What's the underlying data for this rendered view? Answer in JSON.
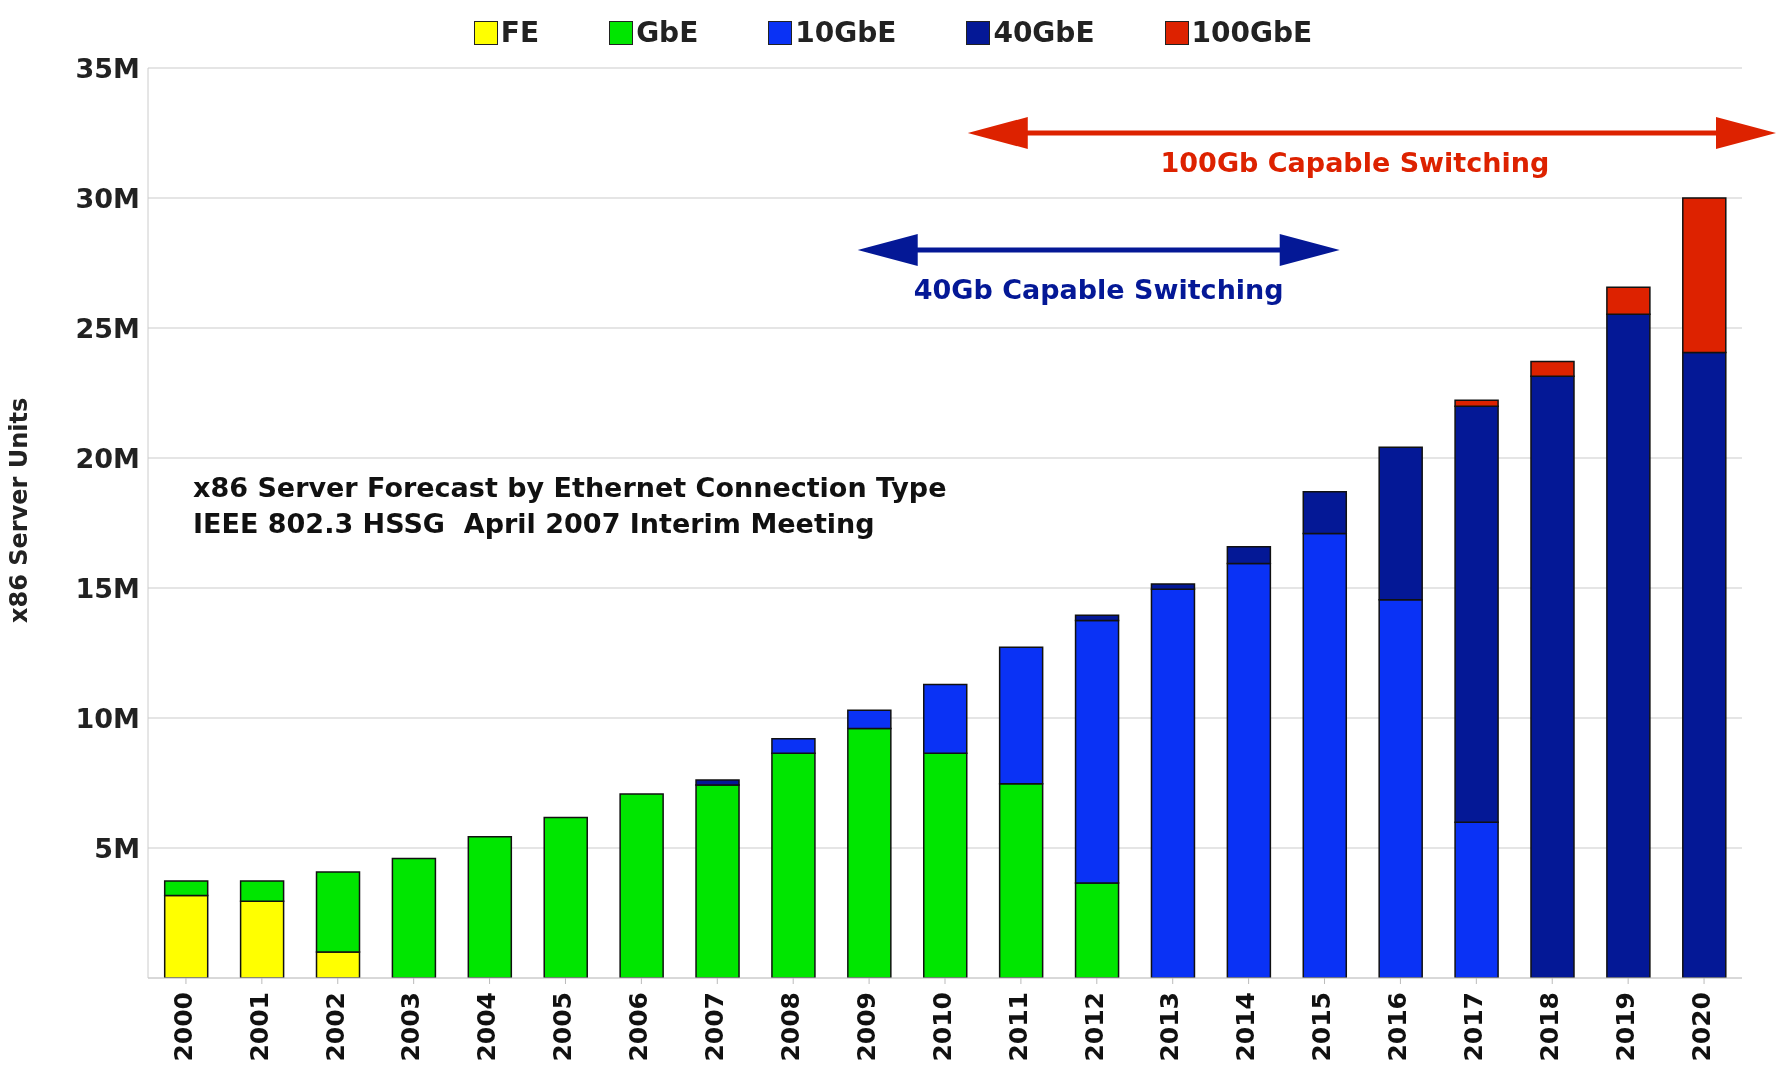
{
  "chart_data": {
    "type": "bar",
    "stacked": true,
    "title": "x86 Server Forecast by Ethernet Connection Type",
    "subtitle": "IEEE 802.3 HSSG  April 2007 Interim Meeting",
    "ylabel": "x86 Server Units",
    "categories": [
      "2000",
      "2001",
      "2002",
      "2003",
      "2004",
      "2005",
      "2006",
      "2007",
      "2008",
      "2009",
      "2010",
      "2011",
      "2012",
      "2013",
      "2014",
      "2015",
      "2016",
      "2017",
      "2018",
      "2019",
      "2020"
    ],
    "series": [
      {
        "name": "FE",
        "color": "#ffff00",
        "values": [
          3.17,
          2.95,
          1.0,
          null,
          null,
          null,
          null,
          null,
          null,
          null,
          null,
          null,
          null,
          null,
          null,
          null,
          null,
          null,
          null,
          null,
          null
        ]
      },
      {
        "name": "GbE",
        "color": "#00e600",
        "values": [
          0.56,
          0.78,
          3.08,
          4.6,
          5.43,
          6.17,
          7.08,
          7.42,
          8.64,
          9.6,
          8.64,
          7.47,
          3.65,
          null,
          null,
          null,
          null,
          null,
          null,
          null,
          null
        ]
      },
      {
        "name": "10GbE",
        "color": "#0a32f5",
        "values": [
          null,
          null,
          null,
          null,
          null,
          null,
          null,
          null,
          0.56,
          0.7,
          2.65,
          5.25,
          10.1,
          14.95,
          15.94,
          17.1,
          14.55,
          5.99,
          null,
          null,
          null
        ]
      },
      {
        "name": "40GbE",
        "color": "#041896",
        "values": [
          null,
          null,
          null,
          null,
          null,
          null,
          null,
          0.2,
          null,
          null,
          null,
          null,
          0.2,
          0.2,
          0.65,
          1.6,
          5.86,
          16.0,
          23.14,
          25.53,
          24.06
        ]
      },
      {
        "name": "100GbE",
        "color": "#dd2200",
        "values": [
          null,
          null,
          null,
          null,
          null,
          null,
          null,
          null,
          null,
          null,
          null,
          null,
          null,
          null,
          null,
          null,
          null,
          0.23,
          0.57,
          1.04,
          5.94
        ]
      }
    ],
    "ylim": [
      0,
      35
    ],
    "yticks": [
      {
        "value": 5,
        "label": "5M"
      },
      {
        "value": 10,
        "label": "10M"
      },
      {
        "value": 15,
        "label": "15M"
      },
      {
        "value": 20,
        "label": "20M"
      },
      {
        "value": 25,
        "label": "25M"
      },
      {
        "value": 30,
        "label": "30M"
      },
      {
        "value": 35,
        "label": "35M"
      }
    ],
    "grid": "y",
    "legend": "top",
    "annotations": [
      "100Gb Capable Switching",
      "40Gb Capable Switching"
    ]
  }
}
